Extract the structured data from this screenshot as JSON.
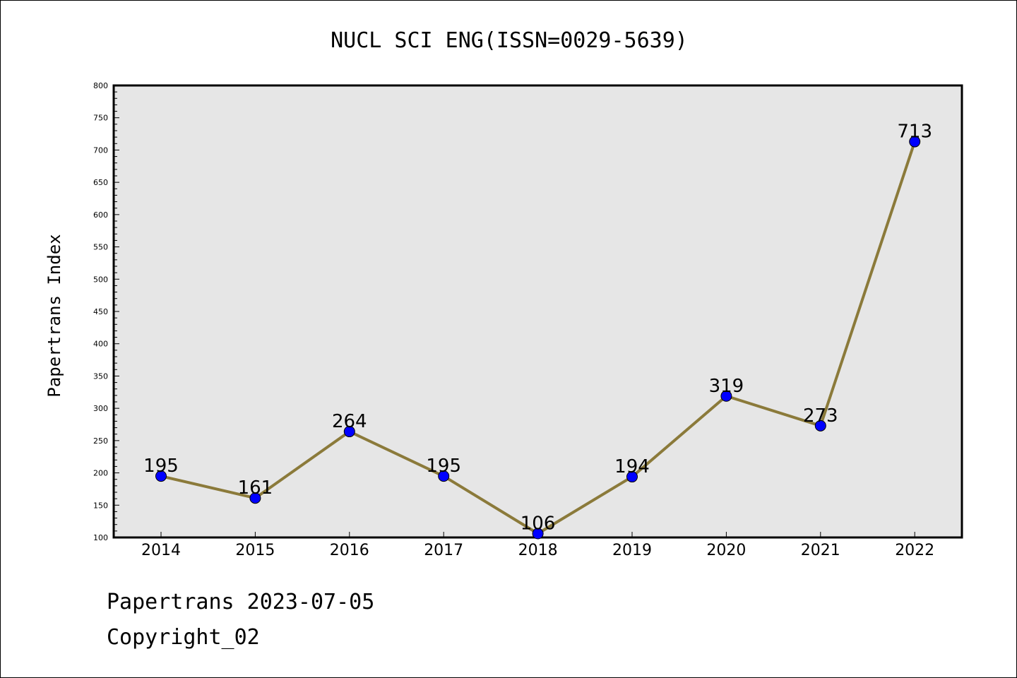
{
  "chart_data": {
    "type": "line",
    "title": "NUCL SCI ENG(ISSN=0029-5639)",
    "xlabel": "",
    "ylabel": "Papertrans Index",
    "categories": [
      "2014",
      "2015",
      "2016",
      "2017",
      "2018",
      "2019",
      "2020",
      "2021",
      "2022"
    ],
    "values": [
      195,
      161,
      264,
      195,
      106,
      194,
      319,
      273,
      713
    ],
    "ylim": [
      100,
      800
    ],
    "yticks": [
      100,
      150,
      200,
      250,
      300,
      350,
      400,
      450,
      500,
      550,
      600,
      650,
      700,
      750,
      800
    ],
    "grid": false,
    "colors": {
      "line": "#8b7a3a",
      "marker": "#0000ff",
      "plot_background": "#e6e6e6"
    }
  },
  "footer": {
    "line1": "Papertrans 2023-07-05",
    "line2": "Copyright_02"
  }
}
